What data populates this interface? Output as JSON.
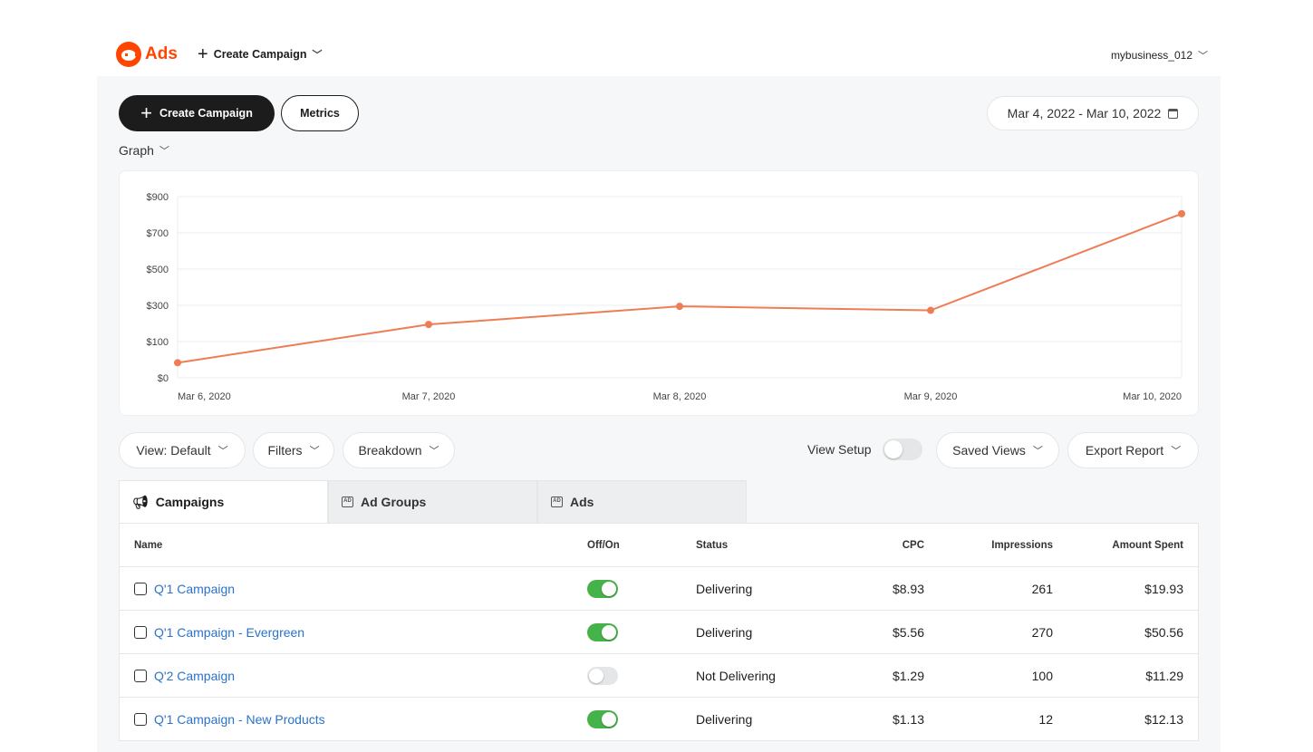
{
  "header": {
    "logo_text": "Ads",
    "create_label": "Create Campaign",
    "account": "mybusiness_012"
  },
  "actions": {
    "create_label": "Create Campaign",
    "metrics_label": "Metrics",
    "date_range": "Mar 4, 2022 - Mar 10, 2022",
    "graph_label": "Graph"
  },
  "chart_data": {
    "type": "line",
    "x": [
      "Mar 6, 2020",
      "Mar 7, 2020",
      "Mar 8, 2020",
      "Mar 9, 2020",
      "Mar 10, 2020"
    ],
    "series": [
      {
        "values": [
          75,
          265,
          355,
          335,
          815
        ]
      }
    ],
    "y_ticks": [
      "$0",
      "$100",
      "$300",
      "$500",
      "$700",
      "$900"
    ],
    "ylim": [
      0,
      900
    ],
    "grid": true,
    "line_color": "#ee7d55"
  },
  "toolbar": {
    "view_label": "View: Default",
    "filters_label": "Filters",
    "breakdown_label": "Breakdown",
    "view_setup_label": "View Setup",
    "saved_views_label": "Saved Views",
    "export_label": "Export Report"
  },
  "tabs": [
    {
      "label": "Campaigns",
      "icon": "megaphone-icon",
      "active": true
    },
    {
      "label": "Ad Groups",
      "icon": "ad-group-icon",
      "active": false
    },
    {
      "label": "Ads",
      "icon": "ad-icon",
      "active": false
    }
  ],
  "table": {
    "columns": [
      "Name",
      "Off/On",
      "Status",
      "CPC",
      "Impressions",
      "Amount Spent"
    ],
    "rows": [
      {
        "name": "Q'1 Campaign",
        "on": true,
        "status": "Delivering",
        "cpc": "$8.93",
        "impressions": "261",
        "amount": "$19.93"
      },
      {
        "name": "Q'1 Campaign - Evergreen",
        "on": true,
        "status": "Delivering",
        "cpc": "$5.56",
        "impressions": "270",
        "amount": "$50.56"
      },
      {
        "name": "Q'2 Campaign",
        "on": false,
        "status": "Not Delivering",
        "cpc": "$1.29",
        "impressions": "100",
        "amount": "$11.29"
      },
      {
        "name": "Q'1 Campaign - New Products",
        "on": true,
        "status": "Delivering",
        "cpc": "$1.13",
        "impressions": "12",
        "amount": "$12.13"
      }
    ]
  },
  "colors": {
    "brand": "#ff4500",
    "toggle_on": "#46b34a",
    "link": "#2a73c8"
  }
}
